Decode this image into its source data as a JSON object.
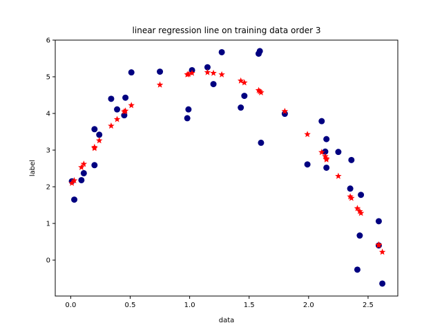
{
  "chart_data": {
    "type": "scatter",
    "title": "linear regression line on training data order 3",
    "xlabel": "data",
    "ylabel": "label",
    "xlim": [
      -0.13,
      2.75
    ],
    "ylim": [
      -0.98,
      6.0
    ],
    "xticks": [
      0.0,
      0.5,
      1.0,
      1.5,
      2.0,
      2.5
    ],
    "yticks": [
      0,
      1,
      2,
      3,
      4,
      5,
      6
    ],
    "xtick_labels": [
      "0.0",
      "0.5",
      "1.0",
      "1.5",
      "2.0",
      "2.5"
    ],
    "ytick_labels": [
      "0",
      "1",
      "2",
      "3",
      "4",
      "5",
      "6"
    ],
    "grid": false,
    "legend": "none",
    "series": [
      {
        "marker": "circle",
        "color": "#000080",
        "x": [
          0.01,
          0.03,
          0.09,
          0.11,
          0.2,
          0.2,
          0.24,
          0.34,
          0.39,
          0.45,
          0.46,
          0.51,
          0.75,
          0.98,
          0.99,
          1.02,
          1.15,
          1.2,
          1.27,
          1.43,
          1.46,
          1.58,
          1.59,
          1.6,
          1.8,
          1.99,
          2.11,
          2.14,
          2.15,
          2.15,
          2.25,
          2.35,
          2.36,
          2.41,
          2.43,
          2.44,
          2.59,
          2.59,
          2.62
        ],
        "y": [
          2.15,
          1.65,
          2.18,
          2.37,
          3.57,
          2.59,
          3.42,
          4.4,
          4.11,
          3.95,
          4.43,
          5.12,
          5.14,
          3.87,
          4.11,
          5.18,
          5.26,
          4.8,
          5.67,
          4.16,
          4.48,
          5.63,
          5.7,
          3.2,
          3.99,
          2.61,
          3.79,
          2.96,
          2.52,
          3.3,
          2.95,
          1.95,
          2.73,
          -0.26,
          0.67,
          1.78,
          1.06,
          0.4,
          -0.64
        ]
      },
      {
        "marker": "star",
        "color": "#ff0000",
        "x": [
          0.01,
          0.03,
          0.09,
          0.11,
          0.2,
          0.2,
          0.24,
          0.34,
          0.39,
          0.45,
          0.46,
          0.51,
          0.75,
          0.98,
          0.99,
          1.02,
          1.15,
          1.2,
          1.27,
          1.43,
          1.46,
          1.58,
          1.59,
          1.6,
          1.8,
          1.99,
          2.11,
          2.14,
          2.15,
          2.15,
          2.25,
          2.35,
          2.36,
          2.41,
          2.43,
          2.44,
          2.59,
          2.59,
          2.62
        ],
        "y": [
          2.1,
          2.17,
          2.53,
          2.62,
          3.05,
          3.08,
          3.26,
          3.66,
          3.84,
          4.05,
          4.07,
          4.22,
          4.78,
          5.06,
          5.07,
          5.1,
          5.12,
          5.1,
          5.06,
          4.89,
          4.84,
          4.63,
          4.6,
          4.57,
          4.06,
          3.43,
          2.94,
          2.83,
          2.77,
          2.74,
          2.29,
          1.73,
          1.69,
          1.41,
          1.33,
          1.28,
          0.42,
          0.4,
          0.22
        ]
      }
    ]
  }
}
